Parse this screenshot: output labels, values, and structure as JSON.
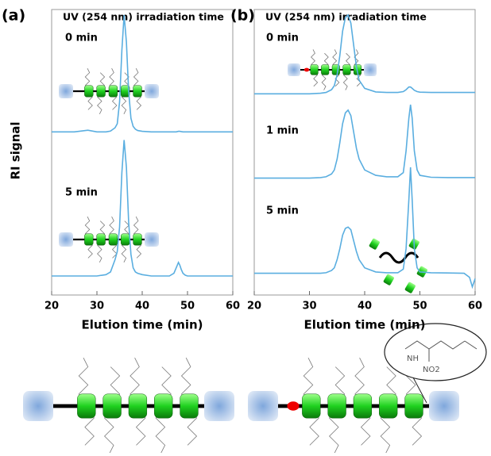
{
  "chart_data": [
    {
      "type": "line",
      "panel_label": "(a)",
      "title": "UV (254 nm) irradiation time",
      "xlabel": "Elution time (min)",
      "ylabel": "RI signal",
      "xlim": [
        20,
        60
      ],
      "xticks": [
        20,
        30,
        40,
        50,
        60
      ],
      "ylim": [
        -5,
        100
      ],
      "x": [
        20,
        25,
        28,
        30,
        32,
        33,
        34,
        34.5,
        35,
        35.5,
        36,
        36.5,
        37,
        37.5,
        38,
        38.5,
        39,
        40,
        42,
        44,
        46,
        47,
        47.5,
        48,
        48.3,
        48.6,
        49,
        49.5,
        50,
        52,
        55,
        58,
        59,
        59.5,
        60
      ],
      "series": [
        {
          "name": "0 min",
          "color": "#5aaee0",
          "values": [
            55,
            55,
            55.6,
            55,
            55,
            55.3,
            56.5,
            58,
            66,
            85,
            98,
            88,
            70,
            60,
            57,
            56,
            55.5,
            55.2,
            55,
            55,
            55,
            55,
            55,
            55.2,
            55.2,
            55.1,
            55,
            55,
            55,
            55,
            55,
            55,
            55,
            55,
            55
          ]
        },
        {
          "name": "5 min",
          "color": "#5aaee0",
          "values": [
            2,
            2,
            2,
            2,
            2.5,
            3.5,
            8,
            11,
            20,
            40,
            52,
            42,
            22,
            10,
            5,
            3.5,
            3,
            2.5,
            2,
            2,
            2,
            3,
            5,
            7,
            6,
            4.5,
            3,
            2.3,
            2,
            2,
            2,
            2,
            2,
            2,
            2
          ]
        }
      ]
    },
    {
      "type": "line",
      "panel_label": "(b)",
      "title": "UV (254 nm) irradiation time",
      "xlabel": "Elution time (min)",
      "xlim": [
        20,
        60
      ],
      "xticks": [
        20,
        30,
        40,
        50,
        60
      ],
      "ylim": [
        -5,
        100
      ],
      "x": [
        20,
        25,
        28,
        30,
        32,
        33,
        34,
        34.5,
        35,
        35.5,
        36,
        36.5,
        37,
        37.5,
        38,
        38.5,
        39,
        40,
        42,
        44,
        46,
        47,
        47.5,
        48,
        48.3,
        48.6,
        49,
        49.5,
        50,
        52,
        55,
        58,
        59,
        59.5,
        60
      ],
      "series": [
        {
          "name": "0 min",
          "color": "#5aaee0",
          "values": [
            69,
            69,
            69,
            69,
            69.2,
            69.5,
            70.5,
            72,
            76,
            83,
            92,
            97,
            98,
            95,
            87,
            79,
            74,
            71,
            69.7,
            69.5,
            69.5,
            69.8,
            70.5,
            71.5,
            71.5,
            71,
            70.3,
            69.8,
            69.6,
            69.5,
            69.5,
            69.5,
            69.5,
            69.5,
            69.5
          ]
        },
        {
          "name": "1 min",
          "color": "#5aaee0",
          "values": [
            38,
            38,
            38,
            38,
            38.2,
            38.5,
            39.5,
            41,
            45,
            51,
            58,
            62,
            63,
            61,
            55,
            49,
            45,
            41,
            39,
            38.5,
            38.5,
            40,
            48,
            60,
            65,
            60,
            48,
            41,
            39,
            38.3,
            38.2,
            38.2,
            38.2,
            38.2,
            38.2
          ]
        },
        {
          "name": "5 min",
          "color": "#5aaee0",
          "values": [
            3,
            3,
            3,
            3,
            3,
            3.2,
            4,
            5,
            8,
            12,
            17,
            19.5,
            20,
            19,
            15,
            11,
            8,
            5,
            3.5,
            3.2,
            3.2,
            4.5,
            12,
            30,
            42,
            30,
            12,
            5,
            3.5,
            3.2,
            3.1,
            3,
            1.5,
            -2,
            1
          ]
        }
      ]
    }
  ],
  "structure_labels": {
    "amide": "NH",
    "nitro": "NO2"
  }
}
